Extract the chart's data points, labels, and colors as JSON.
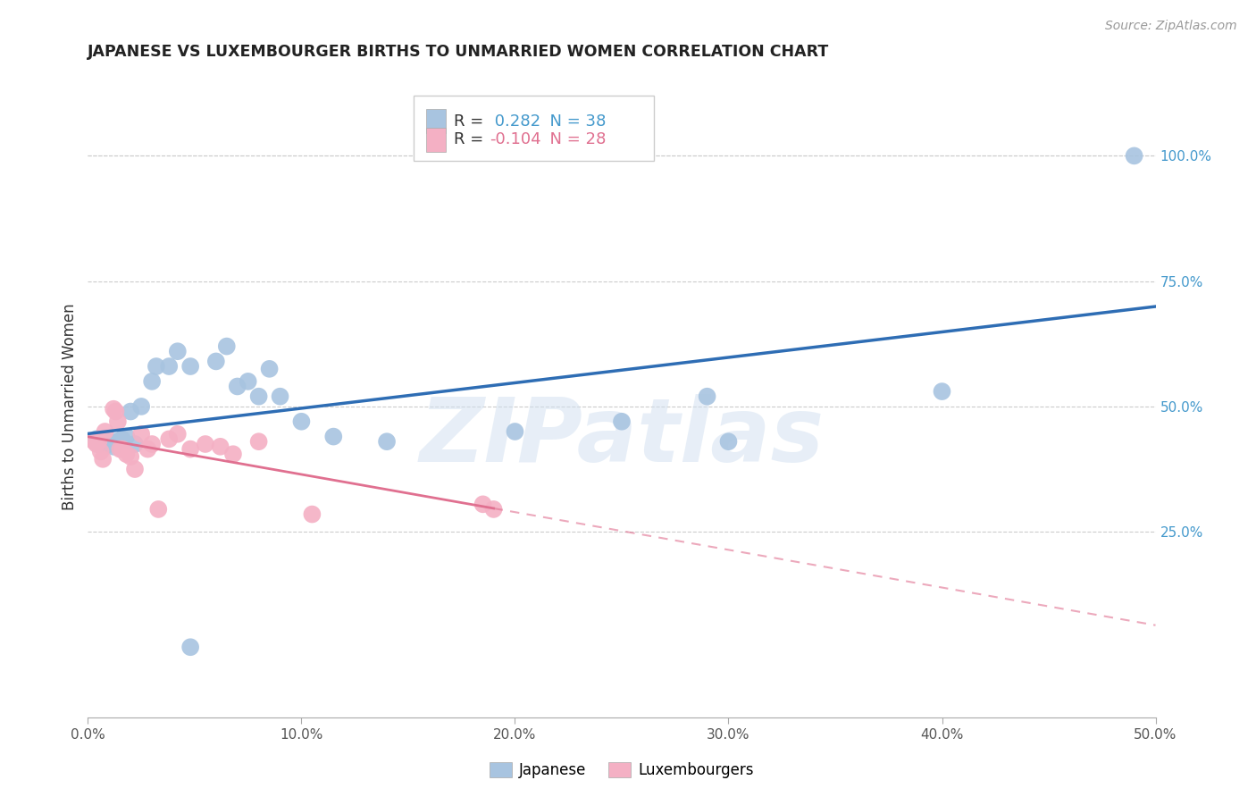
{
  "title": "JAPANESE VS LUXEMBOURGER BIRTHS TO UNMARRIED WOMEN CORRELATION CHART",
  "source": "Source: ZipAtlas.com",
  "ylabel": "Births to Unmarried Women",
  "xlim": [
    0.0,
    0.5
  ],
  "ylim": [
    -0.12,
    1.12
  ],
  "xticks": [
    0.0,
    0.1,
    0.2,
    0.3,
    0.4,
    0.5
  ],
  "xticklabels": [
    "0.0%",
    "10.0%",
    "20.0%",
    "30.0%",
    "40.0%",
    "50.0%"
  ],
  "yticks_right": [
    0.25,
    0.5,
    0.75,
    1.0
  ],
  "ytickslabels_right": [
    "25.0%",
    "50.0%",
    "75.0%",
    "100.0%"
  ],
  "R_japanese": 0.282,
  "N_japanese": 38,
  "R_luxembourger": -0.104,
  "N_luxembourger": 28,
  "japanese_color": "#a8c4e0",
  "luxembourger_color": "#f4b0c4",
  "japanese_line_color": "#2e6db4",
  "luxembourger_line_color": "#e07090",
  "background_color": "#ffffff",
  "grid_color": "#cccccc",
  "watermark": "ZIPatlas",
  "japanese_x": [
    0.004,
    0.005,
    0.006,
    0.007,
    0.008,
    0.009,
    0.01,
    0.012,
    0.013,
    0.014,
    0.015,
    0.016,
    0.018,
    0.02,
    0.022,
    0.025,
    0.03,
    0.032,
    0.038,
    0.042,
    0.048,
    0.06,
    0.065,
    0.07,
    0.075,
    0.08,
    0.085,
    0.09,
    0.1,
    0.115,
    0.14,
    0.2,
    0.25,
    0.29,
    0.3,
    0.4,
    0.49,
    0.048
  ],
  "japanese_y": [
    0.435,
    0.425,
    0.43,
    0.435,
    0.43,
    0.43,
    0.425,
    0.42,
    0.43,
    0.43,
    0.43,
    0.435,
    0.44,
    0.49,
    0.425,
    0.5,
    0.55,
    0.58,
    0.58,
    0.61,
    0.58,
    0.59,
    0.62,
    0.54,
    0.55,
    0.52,
    0.575,
    0.52,
    0.47,
    0.44,
    0.43,
    0.45,
    0.47,
    0.52,
    0.43,
    0.53,
    1.0,
    0.02
  ],
  "luxembourger_x": [
    0.003,
    0.004,
    0.005,
    0.006,
    0.007,
    0.008,
    0.012,
    0.013,
    0.014,
    0.015,
    0.016,
    0.018,
    0.02,
    0.022,
    0.025,
    0.028,
    0.03,
    0.033,
    0.038,
    0.042,
    0.048,
    0.055,
    0.062,
    0.068,
    0.08,
    0.105,
    0.185,
    0.19
  ],
  "luxembourger_y": [
    0.43,
    0.425,
    0.43,
    0.41,
    0.395,
    0.45,
    0.495,
    0.49,
    0.47,
    0.415,
    0.415,
    0.405,
    0.4,
    0.375,
    0.445,
    0.415,
    0.425,
    0.295,
    0.435,
    0.445,
    0.415,
    0.425,
    0.42,
    0.405,
    0.43,
    0.285,
    0.305,
    0.295
  ]
}
